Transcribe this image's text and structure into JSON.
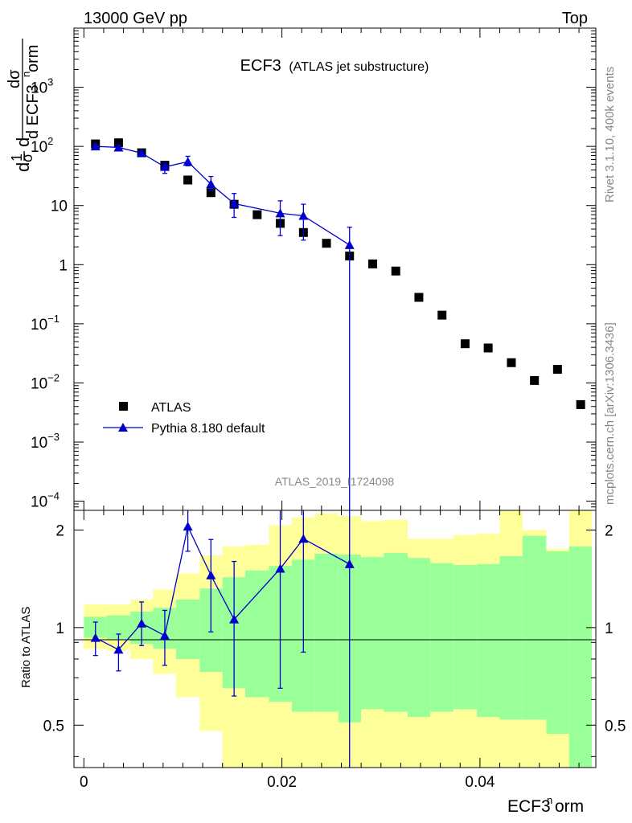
{
  "header": {
    "left": "13000 GeV pp",
    "right": "Top"
  },
  "side": {
    "rivet": "Rivet 3.1.10,  400k events",
    "mcplots": "mcplots.cern.ch [arXiv:1306.3436]"
  },
  "plot": {
    "title_main": "ECF3",
    "title_sub": "(ATLAS jet substructure)",
    "analysis_id": "ATLAS_2019_I1724098",
    "ylabel_ratio": "Ratio to ATLAS",
    "xlabel": "ECF3^{n}orm",
    "ylabel_main": "1/σ dσ/d ECF3^{n}orm"
  },
  "colors": {
    "data": "#000000",
    "mc": "#0000cc",
    "band_outer": "#ffff99",
    "band_inner": "#99ff99"
  },
  "chart_data": {
    "type": "scatter",
    "title": "ECF3 (ATLAS jet substructure)",
    "xlim": [
      -0.001,
      0.0517
    ],
    "ylim_main": [
      7e-05,
      10000
    ],
    "ylim_ratio": [
      0.37,
      2.3
    ],
    "x_ticks": [
      "0",
      "0.02",
      "0.04"
    ],
    "y_ticks_main": [
      "10^{-4}",
      "10^{-3}",
      "10^{-2}",
      "10^{-1}",
      "1",
      "10",
      "10^{2}",
      "10^{3}"
    ],
    "y_ticks_ratio": [
      "0.5",
      "1",
      "2"
    ],
    "legend": [
      "ATLAS",
      "Pythia 8.180 default"
    ],
    "bin_edges": [
      0.0,
      0.0023,
      0.0047,
      0.007,
      0.0093,
      0.0117,
      0.014,
      0.0163,
      0.0187,
      0.021,
      0.0233,
      0.0257,
      0.028,
      0.0303,
      0.0327,
      0.035,
      0.0373,
      0.0397,
      0.042,
      0.0443,
      0.0467,
      0.049,
      0.0513
    ],
    "series": [
      {
        "name": "ATLAS",
        "x": [
          0.00117,
          0.0035,
          0.00583,
          0.00817,
          0.0105,
          0.01283,
          0.01517,
          0.0175,
          0.01983,
          0.02217,
          0.0245,
          0.02683,
          0.02917,
          0.0315,
          0.03383,
          0.03617,
          0.0385,
          0.04083,
          0.04317,
          0.0455,
          0.04783,
          0.05017
        ],
        "y": [
          110,
          115,
          78,
          48,
          27,
          16.5,
          10.5,
          7.0,
          5.0,
          3.5,
          2.3,
          1.4,
          1.03,
          0.78,
          0.28,
          0.14,
          0.046,
          0.039,
          0.022,
          0.011,
          0.017,
          0.0043
        ]
      },
      {
        "name": "Pythia 8.180 default",
        "x": [
          0.00117,
          0.0035,
          0.00583,
          0.00817,
          0.0105,
          0.01283,
          0.01517,
          0.01983,
          0.02217,
          0.02683
        ],
        "y": [
          100,
          96,
          77,
          45,
          55,
          23,
          10.8,
          7.4,
          6.7,
          2.15
        ],
        "y_low": [
          90,
          88,
          71,
          35,
          47,
          18,
          6.3,
          3.1,
          2.6,
          1e-05
        ],
        "y_high": [
          110,
          104,
          83,
          52,
          68,
          31,
          16,
          12,
          10.5,
          4.3
        ]
      }
    ],
    "ratio": {
      "x": [
        0.00117,
        0.0035,
        0.00583,
        0.00817,
        0.0105,
        0.01283,
        0.01517,
        0.01983,
        0.02217,
        0.02683
      ],
      "y": [
        0.93,
        0.855,
        1.03,
        0.945,
        2.05,
        1.45,
        1.06,
        1.52,
        1.88,
        1.57
      ],
      "y_low": [
        0.82,
        0.735,
        0.88,
        0.765,
        1.72,
        0.97,
        0.615,
        0.65,
        0.84,
        0.2
      ],
      "y_high": [
        1.04,
        0.955,
        1.2,
        1.13,
        2.3,
        1.87,
        1.6,
        2.3,
        2.3,
        2.3
      ],
      "band_outer_low": [
        0.86,
        0.85,
        0.8,
        0.72,
        0.61,
        0.48,
        0.37,
        0.37,
        0.37,
        0.37,
        0.37,
        0.37,
        0.37,
        0.37,
        0.37,
        0.37,
        0.37,
        0.37,
        0.37,
        0.37,
        0.37,
        0.37
      ],
      "band_outer_high": [
        1.18,
        1.18,
        1.22,
        1.31,
        1.47,
        1.67,
        1.78,
        1.8,
        2.07,
        2.19,
        2.25,
        2.21,
        2.13,
        2.15,
        1.88,
        1.88,
        1.93,
        1.95,
        2.43,
        2.0,
        1.75,
        2.41
      ],
      "band_inner_low": [
        0.93,
        0.92,
        0.89,
        0.86,
        0.8,
        0.73,
        0.65,
        0.61,
        0.59,
        0.55,
        0.55,
        0.51,
        0.56,
        0.55,
        0.53,
        0.55,
        0.56,
        0.53,
        0.52,
        0.52,
        0.47,
        0.37
      ],
      "band_inner_high": [
        1.08,
        1.09,
        1.12,
        1.15,
        1.22,
        1.32,
        1.43,
        1.5,
        1.55,
        1.62,
        1.69,
        1.68,
        1.65,
        1.7,
        1.64,
        1.58,
        1.56,
        1.57,
        1.66,
        1.92,
        1.72,
        1.78
      ]
    }
  }
}
